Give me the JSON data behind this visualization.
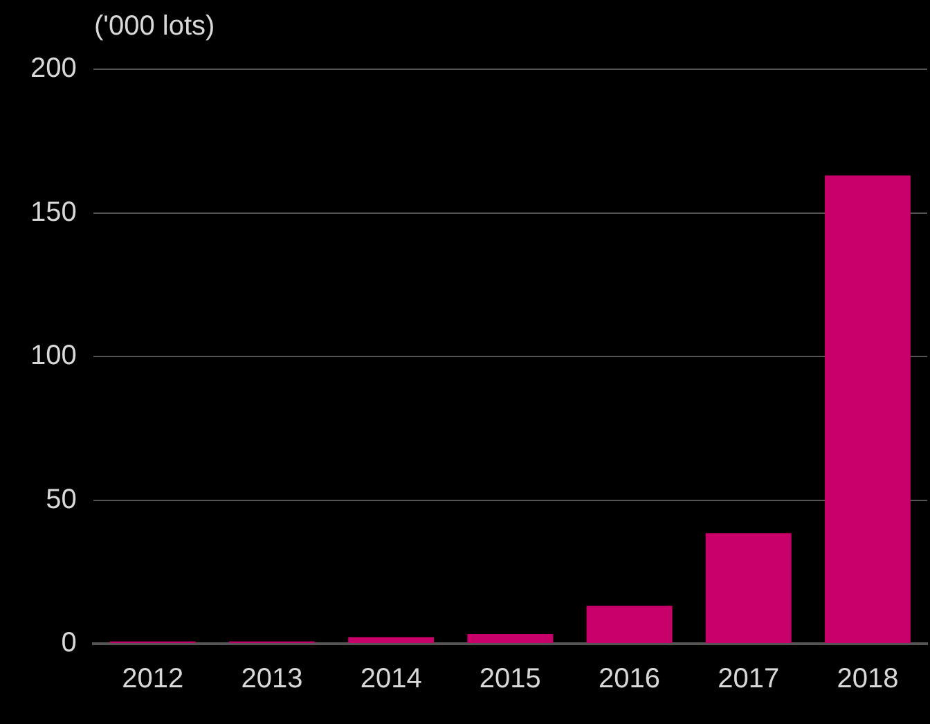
{
  "chart_data": {
    "type": "bar",
    "ylabel": "('000 lots)",
    "categories": [
      "2012",
      "2013",
      "2014",
      "2015",
      "2016",
      "2017",
      "2018"
    ],
    "values": [
      0.8,
      0.8,
      2.3,
      3.4,
      13.2,
      38.5,
      163
    ],
    "color": "#c8006a",
    "ylim": [
      0,
      200
    ],
    "yticks": [
      0,
      50,
      100,
      150,
      200
    ],
    "grid": "y",
    "legend": false
  }
}
